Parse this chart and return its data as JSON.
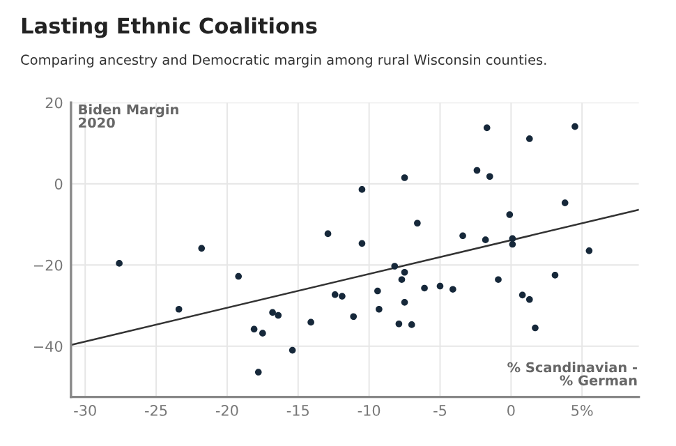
{
  "chart_data": {
    "type": "scatter",
    "title": "Lasting Ethnic Coalitions",
    "subtitle": "Comparing ancestry and Democratic margin among rural Wisconsin counties.",
    "xlabel": "% Scandinavian -\n% German",
    "ylabel": "Biden Margin\n2020",
    "xlim": [
      -31,
      9
    ],
    "ylim": [
      -52.5,
      20
    ],
    "xticks": [
      -30,
      -25,
      -20,
      -15,
      -10,
      -5,
      0,
      {
        "value": 5,
        "label": "5%"
      }
    ],
    "yticks": [
      {
        "value": -40,
        "label": "−40"
      },
      {
        "value": -20,
        "label": "−20"
      },
      0,
      20
    ],
    "grid": true,
    "marker": "circle",
    "series": [
      {
        "color": "#16283a",
        "x": [
          -27.6,
          -23.4,
          -21.8,
          -19.2,
          -18.1,
          -17.5,
          -17.8,
          -16.8,
          -16.4,
          -15.4,
          -14.1,
          -12.9,
          -12.4,
          -11.9,
          -10.5,
          -10.5,
          -11.1,
          -9.4,
          -9.3,
          -8.2,
          -7.7,
          -7.5,
          -7.5,
          -7.9,
          -7.0,
          -7.5,
          -6.6,
          -6.1,
          -5.0,
          -4.1,
          -3.4,
          -2.4,
          -1.8,
          -1.7,
          -1.5,
          -0.9,
          -0.1,
          0.1,
          0.1,
          0.8,
          1.3,
          1.3,
          1.7,
          3.1,
          3.8,
          4.5,
          5.5
        ],
        "values": [
          -19.6,
          -30.9,
          -15.9,
          -22.8,
          -35.8,
          -36.8,
          -46.4,
          -31.7,
          -32.4,
          -41.0,
          -34.1,
          -12.3,
          -27.3,
          -27.7,
          -1.4,
          -14.7,
          -32.7,
          -26.4,
          -30.9,
          -20.3,
          -23.6,
          -21.8,
          -29.2,
          -34.5,
          -34.7,
          1.5,
          -9.7,
          -25.7,
          -25.2,
          -26.0,
          -12.8,
          3.3,
          -13.8,
          13.8,
          1.8,
          -23.6,
          -7.6,
          -13.5,
          -14.9,
          -27.4,
          -28.5,
          11.1,
          -35.5,
          -22.5,
          -4.7,
          14.1,
          -16.5
        ]
      },
      {
        "type": "line",
        "color": "#333333",
        "marker": "none",
        "x": [
          -31,
          9
        ],
        "values": [
          -39.7,
          -6.4
        ]
      }
    ]
  }
}
